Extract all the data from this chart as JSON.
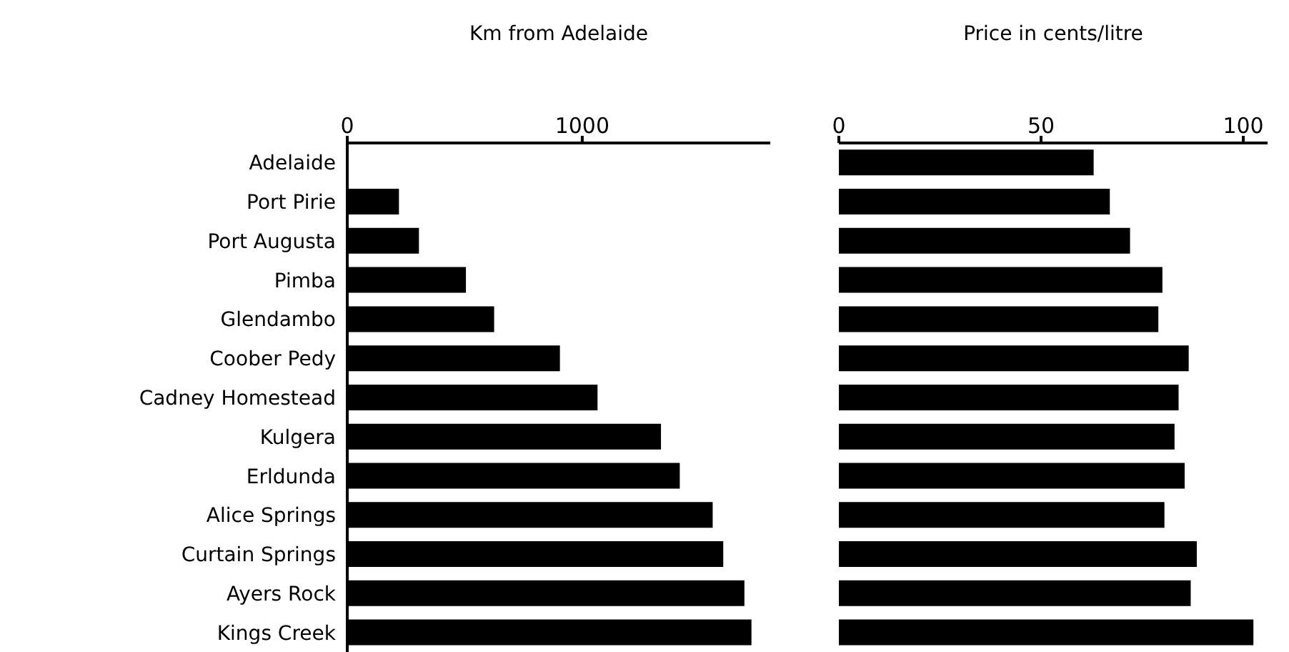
{
  "chart_data": [
    {
      "type": "bar",
      "orientation": "horizontal",
      "xlabel": "Km from Adelaide",
      "categories": [
        "Adelaide",
        "Port Pirie",
        "Port Augusta",
        "Pimba",
        "Glendambo",
        "Coober Pedy",
        "Cadney Homestead",
        "Kulgera",
        "Erldunda",
        "Alice Springs",
        "Curtain Springs",
        "Ayers Rock",
        "Kings Creek"
      ],
      "values": [
        0,
        220,
        305,
        505,
        625,
        905,
        1065,
        1335,
        1415,
        1555,
        1600,
        1690,
        1720
      ],
      "color": "#000000",
      "xlim": [
        0,
        1800
      ],
      "xticks": [
        0,
        1000
      ]
    },
    {
      "type": "bar",
      "orientation": "horizontal",
      "xlabel": "Price in cents/litre",
      "categories": [
        null,
        null,
        null,
        null,
        null,
        null,
        null,
        null,
        null,
        null,
        null,
        null,
        null
      ],
      "values": [
        63,
        67,
        72,
        80,
        79,
        86.5,
        84,
        83,
        85.5,
        80.5,
        88.5,
        87,
        102.5
      ],
      "color": "#000000",
      "xlim": [
        0,
        106
      ],
      "xticks": [
        0,
        50,
        100
      ],
      "tick_labels": "x"
    }
  ]
}
